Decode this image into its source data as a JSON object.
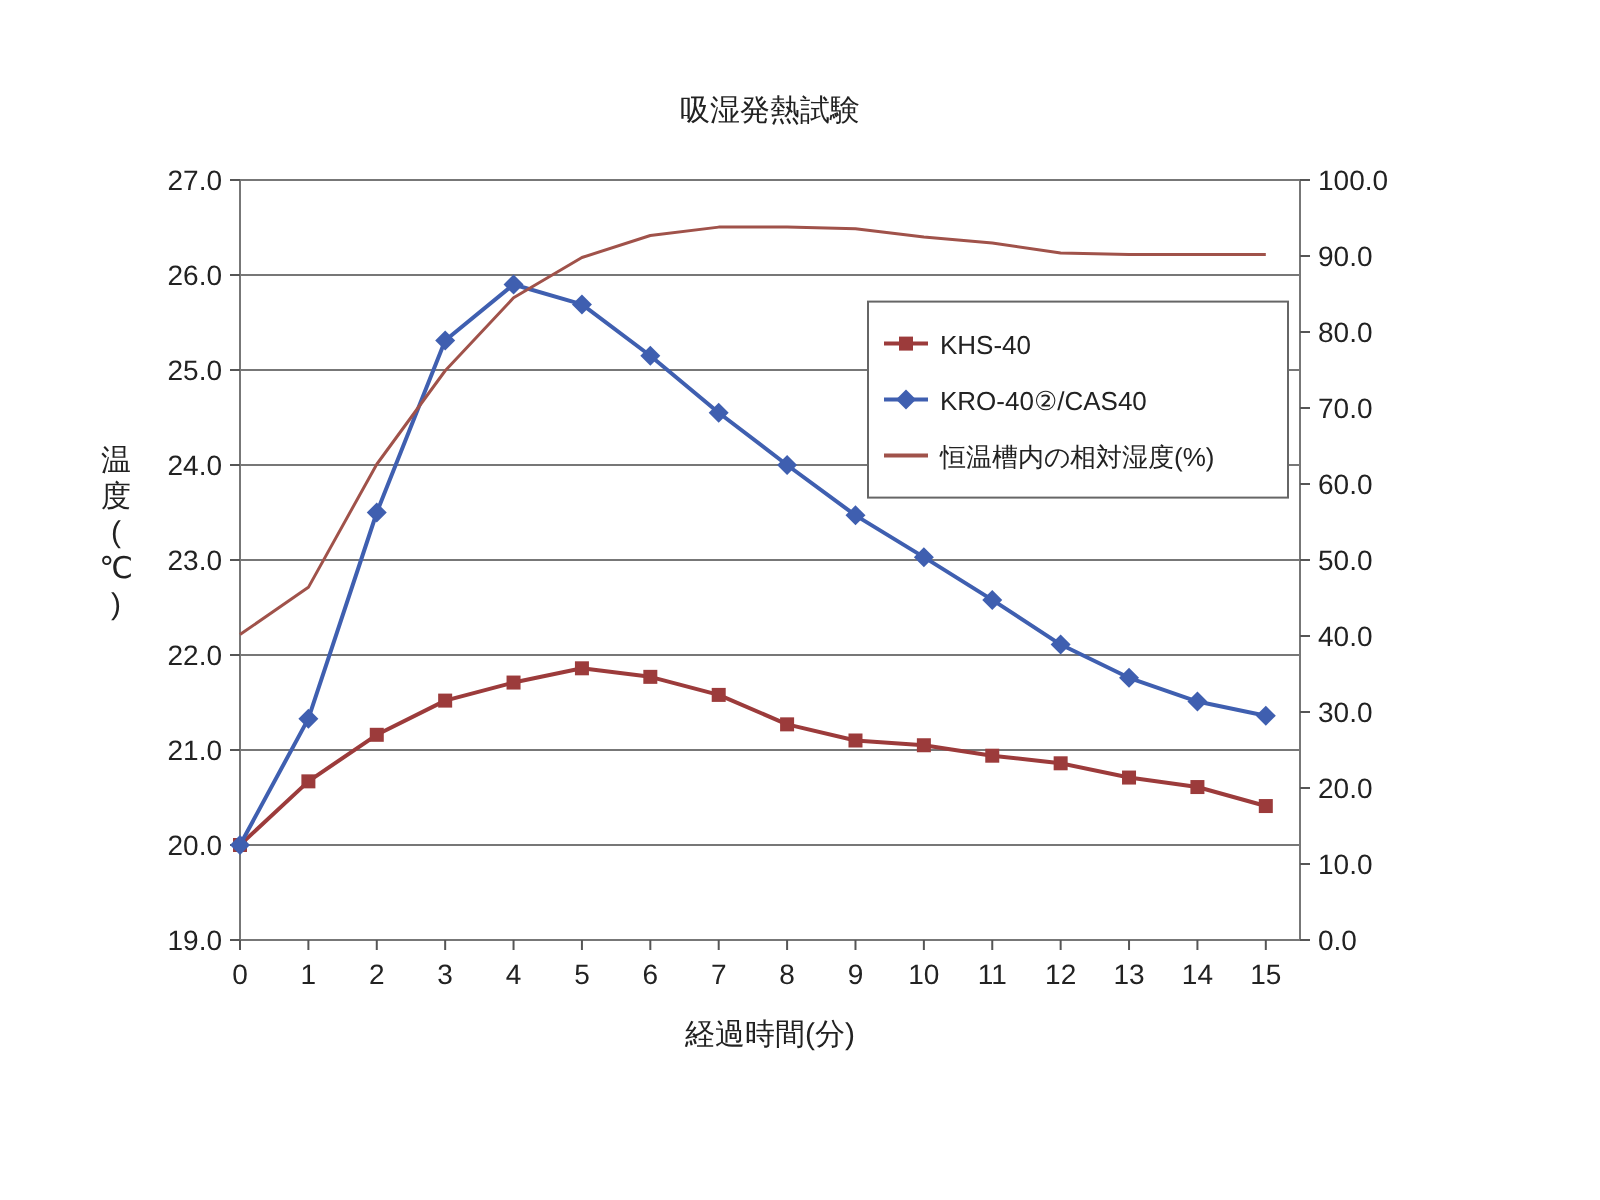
{
  "chart_data": {
    "type": "line",
    "title": "吸湿発熱試験",
    "xlabel": "経過時間(分)",
    "ylabel": "温度(℃)",
    "x": [
      0,
      1,
      2,
      3,
      4,
      5,
      6,
      7,
      8,
      9,
      10,
      11,
      12,
      13,
      14,
      15
    ],
    "xlim": [
      0,
      15.5
    ],
    "xticks": [
      0,
      1,
      2,
      3,
      4,
      5,
      6,
      7,
      8,
      9,
      10,
      11,
      12,
      13,
      14,
      15
    ],
    "ylim": [
      19,
      27
    ],
    "yticks": [
      {
        "value": 19,
        "label": "19.0"
      },
      {
        "value": 20,
        "label": "20.0"
      },
      {
        "value": 21,
        "label": "21.0"
      },
      {
        "value": 22,
        "label": "22.0"
      },
      {
        "value": 23,
        "label": "23.0"
      },
      {
        "value": 24,
        "label": "24.0"
      },
      {
        "value": 25,
        "label": "25.0"
      },
      {
        "value": 26,
        "label": "26.0"
      },
      {
        "value": 27,
        "label": "27.0"
      }
    ],
    "y2lim": [
      0,
      100
    ],
    "y2ticks": [
      {
        "value": 0,
        "label": "0.0"
      },
      {
        "value": 10,
        "label": "10.0"
      },
      {
        "value": 20,
        "label": "20.0"
      },
      {
        "value": 30,
        "label": "30.0"
      },
      {
        "value": 40,
        "label": "40.0"
      },
      {
        "value": 50,
        "label": "50.0"
      },
      {
        "value": 60,
        "label": "60.0"
      },
      {
        "value": 70,
        "label": "70.0"
      },
      {
        "value": 80,
        "label": "80.0"
      },
      {
        "value": 90,
        "label": "90.0"
      },
      {
        "value": 100,
        "label": "100.0"
      }
    ],
    "grid": "y",
    "legend": "top right",
    "series": [
      {
        "name": "KHS-40",
        "color": "#9c3b3b",
        "marker": "square",
        "values": [
          20.0,
          20.67,
          21.16,
          21.52,
          21.71,
          21.86,
          21.77,
          21.58,
          21.27,
          21.1,
          21.05,
          20.94,
          20.86,
          20.71,
          20.61,
          20.41
        ]
      },
      {
        "name": "KRO-40②/CAS40",
        "color": "#3f5fb0",
        "marker": "diamond",
        "values": [
          20.0,
          21.33,
          23.5,
          25.31,
          25.9,
          25.69,
          25.15,
          24.55,
          24.0,
          23.47,
          23.03,
          22.58,
          22.11,
          21.76,
          21.51,
          21.36
        ]
      },
      {
        "name": "恒温槽内の相対湿度(%)",
        "color": "#a0524a",
        "marker": "none",
        "axis": "y2",
        "values": [
          40.2,
          46.4,
          62.6,
          74.9,
          84.5,
          89.8,
          92.7,
          93.8,
          93.8,
          93.6,
          92.5,
          91.7,
          90.4,
          90.2,
          90.2,
          90.2
        ]
      }
    ]
  }
}
